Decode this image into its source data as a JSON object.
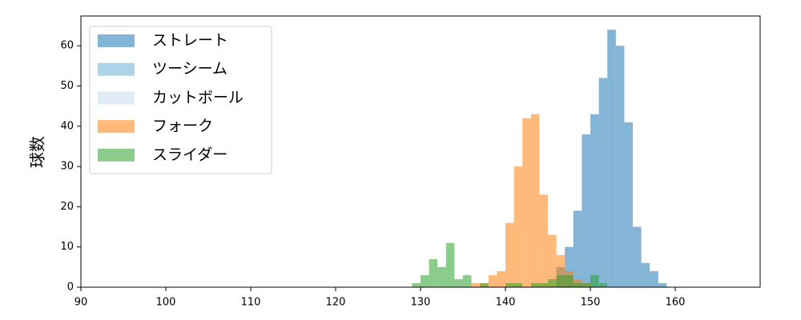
{
  "chart_data": {
    "type": "histogram",
    "ylabel": "球数",
    "xlim": [
      90,
      170
    ],
    "ylim": [
      0,
      67.4
    ],
    "xticks": [
      90,
      100,
      110,
      120,
      130,
      140,
      150,
      160
    ],
    "yticks": [
      0,
      10,
      20,
      30,
      40,
      50,
      60
    ],
    "alpha": 0.55,
    "legend": "upper-left",
    "series": [
      {
        "name": "ストレート",
        "color": "#1f77b4",
        "bins": [
          146,
          147,
          148,
          149,
          150,
          151,
          152,
          153,
          154,
          155,
          156,
          157,
          158,
          159
        ],
        "values": [
          5,
          10,
          19,
          38,
          43,
          52,
          64,
          60,
          41,
          15,
          6,
          4,
          1
        ]
      },
      {
        "name": "ツーシーム",
        "color": "#6baed6",
        "bins": [],
        "values": []
      },
      {
        "name": "カットボール",
        "color": "#c6dbef",
        "bins": [],
        "values": []
      },
      {
        "name": "フォーク",
        "color": "#ff7f0e",
        "bins": [
          136,
          137,
          138,
          139,
          140,
          141,
          142,
          143,
          144,
          145,
          146,
          147,
          148,
          149,
          150
        ],
        "values": [
          1,
          1,
          3,
          4,
          16,
          30,
          42,
          43,
          23,
          13,
          8,
          4,
          2,
          1
        ]
      },
      {
        "name": "スライダー",
        "color": "#2ca02c",
        "bins": [
          129,
          130,
          131,
          132,
          133,
          134,
          135,
          136,
          137,
          138,
          139,
          140,
          141,
          142,
          143,
          144,
          145,
          146,
          147,
          148,
          149,
          150,
          151,
          152
        ],
        "values": [
          1,
          3,
          7,
          5,
          11,
          2,
          3,
          0,
          1,
          0,
          0,
          1,
          1,
          0,
          1,
          1,
          2,
          3,
          3,
          1,
          1,
          3,
          1
        ]
      }
    ]
  }
}
